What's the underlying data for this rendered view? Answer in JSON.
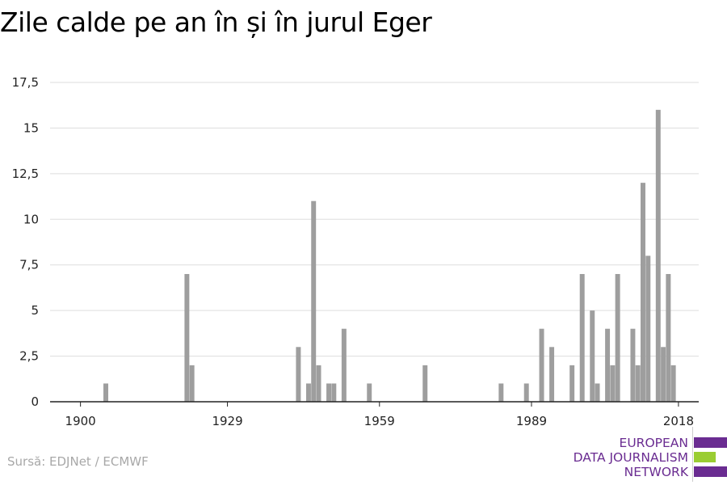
{
  "chart_data": {
    "type": "bar",
    "title": "Zile calde pe an în și în jurul Eger",
    "xlabel": "",
    "ylabel": "",
    "x_ticks": [
      "1900",
      "1929",
      "1959",
      "1989",
      "2018"
    ],
    "x_tick_years": [
      1900,
      1929,
      1959,
      1989,
      2018
    ],
    "y_ticks": [
      "0",
      "2,5",
      "5",
      "7,5",
      "10",
      "12,5",
      "15",
      "17,5"
    ],
    "ylim": [
      0,
      17.5
    ],
    "xlim": [
      1894,
      2022
    ],
    "grid": true,
    "color": "#9e9e9e",
    "data": [
      {
        "year": 1905,
        "value": 1
      },
      {
        "year": 1921,
        "value": 7
      },
      {
        "year": 1922,
        "value": 2
      },
      {
        "year": 1943,
        "value": 3
      },
      {
        "year": 1945,
        "value": 1
      },
      {
        "year": 1946,
        "value": 11
      },
      {
        "year": 1947,
        "value": 2
      },
      {
        "year": 1949,
        "value": 1
      },
      {
        "year": 1950,
        "value": 1
      },
      {
        "year": 1952,
        "value": 4
      },
      {
        "year": 1957,
        "value": 1
      },
      {
        "year": 1968,
        "value": 2
      },
      {
        "year": 1983,
        "value": 1
      },
      {
        "year": 1988,
        "value": 1
      },
      {
        "year": 1991,
        "value": 4
      },
      {
        "year": 1993,
        "value": 3
      },
      {
        "year": 1997,
        "value": 2
      },
      {
        "year": 1999,
        "value": 7
      },
      {
        "year": 2001,
        "value": 5
      },
      {
        "year": 2002,
        "value": 1
      },
      {
        "year": 2004,
        "value": 4
      },
      {
        "year": 2005,
        "value": 2
      },
      {
        "year": 2006,
        "value": 7
      },
      {
        "year": 2009,
        "value": 4
      },
      {
        "year": 2010,
        "value": 2
      },
      {
        "year": 2011,
        "value": 12
      },
      {
        "year": 2012,
        "value": 8
      },
      {
        "year": 2014,
        "value": 16
      },
      {
        "year": 2015,
        "value": 3
      },
      {
        "year": 2016,
        "value": 7
      },
      {
        "year": 2017,
        "value": 2
      }
    ]
  },
  "source": "Sursă: EDJNet / ECMWF",
  "logo": {
    "lines": [
      "EUROPEAN",
      "DATA JOURNALISM",
      "NETWORK"
    ],
    "colors": {
      "purple": "#6a2c91",
      "green": "#9acd32"
    }
  }
}
